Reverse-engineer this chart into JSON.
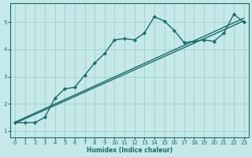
{
  "xlabel": "Humidex (Indice chaleur)",
  "ylabel": "",
  "background_color": "#c5e8e8",
  "grid_color": "#9ecfcf",
  "line_color": "#1a6b6b",
  "xlim": [
    -0.5,
    23.5
  ],
  "ylim": [
    0.75,
    5.7
  ],
  "xticks": [
    0,
    1,
    2,
    3,
    4,
    5,
    6,
    7,
    8,
    9,
    10,
    11,
    12,
    13,
    14,
    15,
    16,
    17,
    18,
    19,
    20,
    21,
    22,
    23
  ],
  "yticks": [
    1,
    2,
    3,
    4,
    5
  ],
  "series": [
    {
      "x": [
        0,
        1,
        2,
        3,
        4,
        5,
        6,
        7,
        8,
        9,
        10,
        11,
        12,
        13,
        14,
        15,
        16,
        17,
        18,
        19,
        20,
        21,
        22,
        23
      ],
      "y": [
        1.3,
        1.3,
        1.3,
        1.5,
        2.2,
        2.55,
        2.6,
        3.05,
        3.5,
        3.85,
        4.35,
        4.4,
        4.35,
        4.6,
        5.2,
        5.05,
        4.7,
        4.25,
        4.3,
        4.35,
        4.3,
        4.6,
        5.3,
        5.0
      ],
      "marker": "D",
      "marker_size": 2.2,
      "lw": 1.0
    },
    {
      "x": [
        0,
        23
      ],
      "y": [
        1.28,
        5.05
      ],
      "marker": null,
      "lw": 1.0
    },
    {
      "x": [
        0,
        23
      ],
      "y": [
        1.32,
        5.15
      ],
      "marker": null,
      "lw": 1.0
    }
  ]
}
